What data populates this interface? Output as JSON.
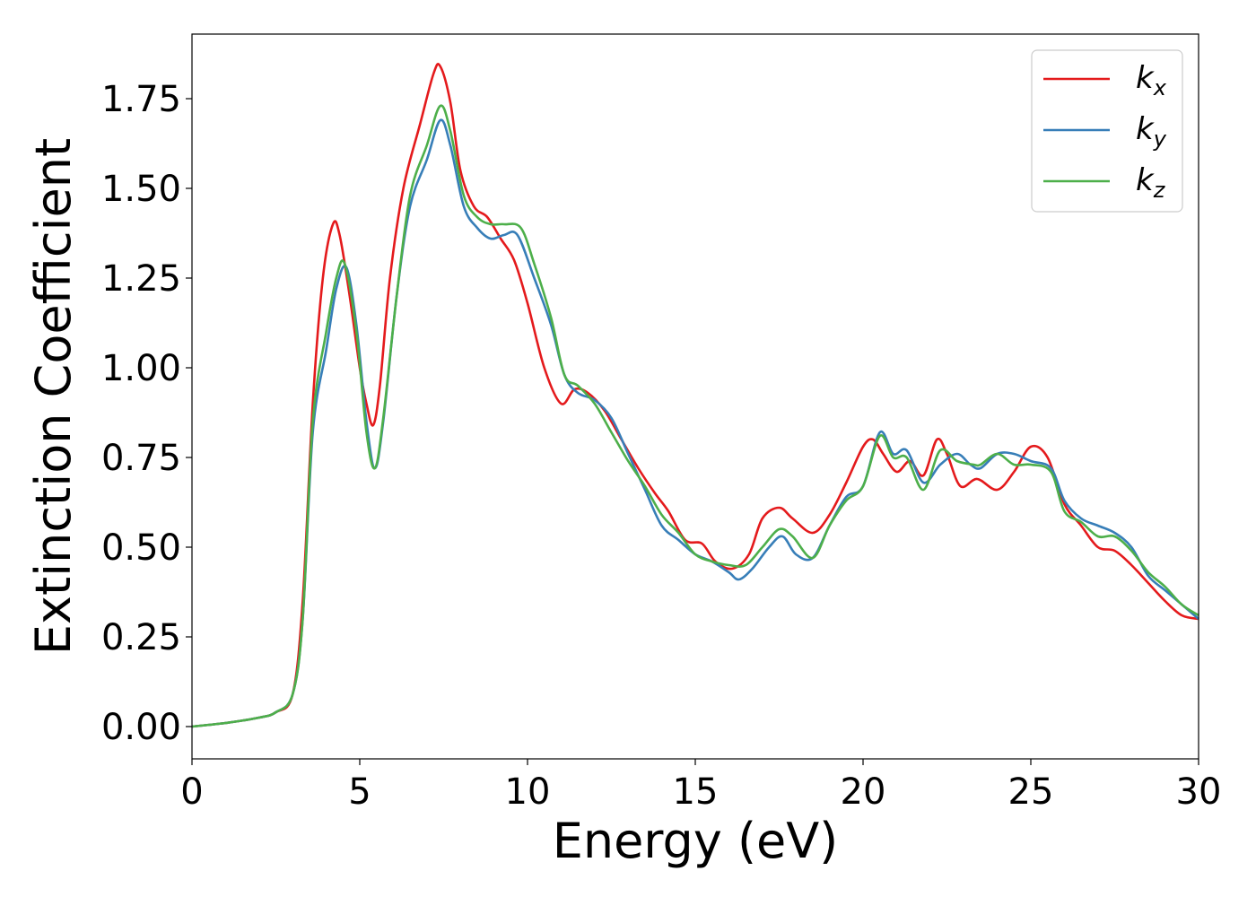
{
  "chart_data": {
    "type": "line",
    "xlabel": "Energy (eV)",
    "ylabel": "Extinction Coefficient",
    "xlim": [
      0,
      30
    ],
    "ylim": [
      -0.09,
      1.93
    ],
    "xticks": [
      0,
      5,
      10,
      15,
      20,
      25,
      30
    ],
    "xtick_labels": [
      "0",
      "5",
      "10",
      "15",
      "20",
      "25",
      "30"
    ],
    "yticks": [
      0,
      0.25,
      0.5,
      0.75,
      1.0,
      1.25,
      1.5,
      1.75
    ],
    "ytick_labels": [
      "0.00",
      "0.25",
      "0.50",
      "0.75",
      "1.00",
      "1.25",
      "1.50",
      "1.75"
    ],
    "grid": false,
    "legend_position": "top-right",
    "series": [
      {
        "name": "k_x",
        "legend_main": "k",
        "legend_sub": "x",
        "color": "#e41a1c",
        "points": [
          [
            0,
            0
          ],
          [
            1,
            0.01
          ],
          [
            2,
            0.025
          ],
          [
            2.5,
            0.04
          ],
          [
            3.0,
            0.09
          ],
          [
            3.3,
            0.35
          ],
          [
            3.6,
            0.9
          ],
          [
            3.9,
            1.25
          ],
          [
            4.2,
            1.4
          ],
          [
            4.4,
            1.37
          ],
          [
            4.7,
            1.2
          ],
          [
            5.0,
            1.0
          ],
          [
            5.2,
            0.9
          ],
          [
            5.4,
            0.84
          ],
          [
            5.6,
            0.95
          ],
          [
            5.9,
            1.25
          ],
          [
            6.3,
            1.5
          ],
          [
            6.8,
            1.68
          ],
          [
            7.2,
            1.82
          ],
          [
            7.4,
            1.84
          ],
          [
            7.7,
            1.74
          ],
          [
            8.0,
            1.55
          ],
          [
            8.4,
            1.45
          ],
          [
            8.8,
            1.42
          ],
          [
            9.2,
            1.36
          ],
          [
            9.6,
            1.3
          ],
          [
            10.0,
            1.18
          ],
          [
            10.5,
            1.0
          ],
          [
            11.0,
            0.9
          ],
          [
            11.4,
            0.94
          ],
          [
            11.8,
            0.93
          ],
          [
            12.3,
            0.88
          ],
          [
            12.8,
            0.8
          ],
          [
            13.3,
            0.72
          ],
          [
            13.8,
            0.65
          ],
          [
            14.2,
            0.6
          ],
          [
            14.7,
            0.52
          ],
          [
            15.2,
            0.51
          ],
          [
            15.6,
            0.46
          ],
          [
            16.1,
            0.44
          ],
          [
            16.6,
            0.48
          ],
          [
            17.0,
            0.58
          ],
          [
            17.5,
            0.61
          ],
          [
            17.9,
            0.58
          ],
          [
            18.5,
            0.54
          ],
          [
            19.0,
            0.59
          ],
          [
            19.5,
            0.68
          ],
          [
            20.0,
            0.78
          ],
          [
            20.3,
            0.8
          ],
          [
            20.6,
            0.76
          ],
          [
            21.0,
            0.71
          ],
          [
            21.4,
            0.74
          ],
          [
            21.8,
            0.7
          ],
          [
            22.2,
            0.8
          ],
          [
            22.5,
            0.76
          ],
          [
            22.9,
            0.67
          ],
          [
            23.4,
            0.69
          ],
          [
            24.0,
            0.66
          ],
          [
            24.5,
            0.71
          ],
          [
            25.0,
            0.78
          ],
          [
            25.5,
            0.75
          ],
          [
            26.0,
            0.62
          ],
          [
            26.5,
            0.56
          ],
          [
            27.0,
            0.5
          ],
          [
            27.5,
            0.49
          ],
          [
            28.0,
            0.45
          ],
          [
            28.5,
            0.4
          ],
          [
            29.0,
            0.35
          ],
          [
            29.5,
            0.31
          ],
          [
            30.0,
            0.3
          ]
        ]
      },
      {
        "name": "k_y",
        "legend_main": "k",
        "legend_sub": "y",
        "color": "#377eb8",
        "points": [
          [
            0,
            0
          ],
          [
            1,
            0.01
          ],
          [
            2,
            0.025
          ],
          [
            2.5,
            0.04
          ],
          [
            3.0,
            0.09
          ],
          [
            3.3,
            0.3
          ],
          [
            3.6,
            0.82
          ],
          [
            4.0,
            1.05
          ],
          [
            4.3,
            1.22
          ],
          [
            4.6,
            1.28
          ],
          [
            4.9,
            1.12
          ],
          [
            5.2,
            0.85
          ],
          [
            5.45,
            0.72
          ],
          [
            5.7,
            0.85
          ],
          [
            6.1,
            1.2
          ],
          [
            6.5,
            1.45
          ],
          [
            7.0,
            1.58
          ],
          [
            7.4,
            1.69
          ],
          [
            7.7,
            1.62
          ],
          [
            8.1,
            1.45
          ],
          [
            8.5,
            1.39
          ],
          [
            8.9,
            1.36
          ],
          [
            9.3,
            1.37
          ],
          [
            9.7,
            1.37
          ],
          [
            10.2,
            1.25
          ],
          [
            10.7,
            1.12
          ],
          [
            11.1,
            0.98
          ],
          [
            11.5,
            0.93
          ],
          [
            12.0,
            0.91
          ],
          [
            12.5,
            0.86
          ],
          [
            13.0,
            0.76
          ],
          [
            13.5,
            0.66
          ],
          [
            14.0,
            0.56
          ],
          [
            14.5,
            0.52
          ],
          [
            15.0,
            0.48
          ],
          [
            15.5,
            0.46
          ],
          [
            16.0,
            0.43
          ],
          [
            16.3,
            0.41
          ],
          [
            16.7,
            0.44
          ],
          [
            17.2,
            0.5
          ],
          [
            17.6,
            0.53
          ],
          [
            18.0,
            0.48
          ],
          [
            18.5,
            0.47
          ],
          [
            19.0,
            0.56
          ],
          [
            19.5,
            0.64
          ],
          [
            20.0,
            0.67
          ],
          [
            20.5,
            0.82
          ],
          [
            20.9,
            0.76
          ],
          [
            21.3,
            0.77
          ],
          [
            21.8,
            0.68
          ],
          [
            22.3,
            0.73
          ],
          [
            22.8,
            0.76
          ],
          [
            23.2,
            0.73
          ],
          [
            23.5,
            0.72
          ],
          [
            24.0,
            0.76
          ],
          [
            24.5,
            0.76
          ],
          [
            25.0,
            0.74
          ],
          [
            25.6,
            0.72
          ],
          [
            26.0,
            0.63
          ],
          [
            26.5,
            0.58
          ],
          [
            27.0,
            0.56
          ],
          [
            27.5,
            0.54
          ],
          [
            28.0,
            0.5
          ],
          [
            28.5,
            0.42
          ],
          [
            29.0,
            0.38
          ],
          [
            29.5,
            0.34
          ],
          [
            30.0,
            0.3
          ]
        ]
      },
      {
        "name": "k_z",
        "legend_main": "k",
        "legend_sub": "z",
        "color": "#4daf4a",
        "points": [
          [
            0,
            0
          ],
          [
            1,
            0.01
          ],
          [
            2,
            0.025
          ],
          [
            2.5,
            0.04
          ],
          [
            3.0,
            0.09
          ],
          [
            3.3,
            0.3
          ],
          [
            3.6,
            0.85
          ],
          [
            4.0,
            1.1
          ],
          [
            4.3,
            1.25
          ],
          [
            4.55,
            1.29
          ],
          [
            4.9,
            1.1
          ],
          [
            5.2,
            0.82
          ],
          [
            5.45,
            0.72
          ],
          [
            5.7,
            0.86
          ],
          [
            6.1,
            1.2
          ],
          [
            6.5,
            1.48
          ],
          [
            7.0,
            1.62
          ],
          [
            7.4,
            1.73
          ],
          [
            7.7,
            1.66
          ],
          [
            8.1,
            1.48
          ],
          [
            8.5,
            1.42
          ],
          [
            8.9,
            1.4
          ],
          [
            9.3,
            1.4
          ],
          [
            9.8,
            1.39
          ],
          [
            10.2,
            1.29
          ],
          [
            10.7,
            1.14
          ],
          [
            11.1,
            0.98
          ],
          [
            11.5,
            0.95
          ],
          [
            12.0,
            0.9
          ],
          [
            12.5,
            0.82
          ],
          [
            13.0,
            0.74
          ],
          [
            13.5,
            0.67
          ],
          [
            14.0,
            0.59
          ],
          [
            14.5,
            0.54
          ],
          [
            15.0,
            0.48
          ],
          [
            15.5,
            0.46
          ],
          [
            16.0,
            0.45
          ],
          [
            16.5,
            0.45
          ],
          [
            17.0,
            0.5
          ],
          [
            17.5,
            0.55
          ],
          [
            17.9,
            0.53
          ],
          [
            18.5,
            0.47
          ],
          [
            19.0,
            0.56
          ],
          [
            19.5,
            0.63
          ],
          [
            20.0,
            0.67
          ],
          [
            20.5,
            0.81
          ],
          [
            20.9,
            0.75
          ],
          [
            21.3,
            0.75
          ],
          [
            21.8,
            0.66
          ],
          [
            22.3,
            0.77
          ],
          [
            22.8,
            0.74
          ],
          [
            23.3,
            0.73
          ],
          [
            23.5,
            0.73
          ],
          [
            24.0,
            0.76
          ],
          [
            24.5,
            0.73
          ],
          [
            25.0,
            0.73
          ],
          [
            25.6,
            0.71
          ],
          [
            26.0,
            0.6
          ],
          [
            26.5,
            0.57
          ],
          [
            27.0,
            0.53
          ],
          [
            27.5,
            0.53
          ],
          [
            28.0,
            0.49
          ],
          [
            28.5,
            0.43
          ],
          [
            29.0,
            0.39
          ],
          [
            29.5,
            0.34
          ],
          [
            30.0,
            0.31
          ]
        ]
      }
    ]
  }
}
